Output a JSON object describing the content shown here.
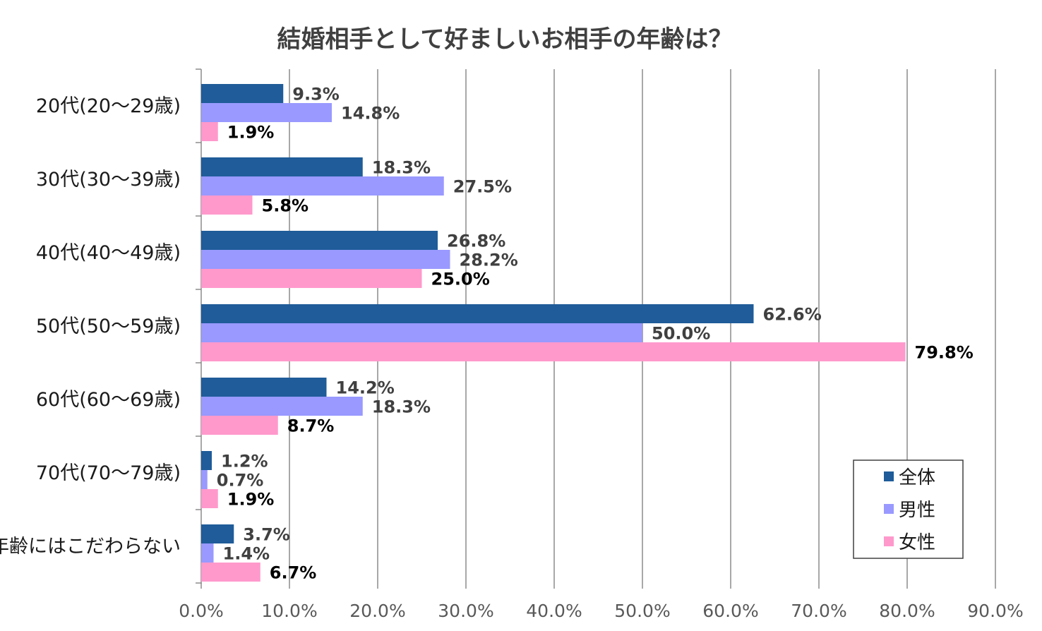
{
  "chart_data": {
    "type": "bar",
    "orientation": "horizontal",
    "title": "結婚相手として好ましいお相手の年齢は？",
    "categories": [
      "20代(20～29歳)",
      "30代(30～39歳)",
      "40代(40～49歳)",
      "50代(50～59歳)",
      "60代(60～69歳)",
      "70代(70～79歳)",
      "年齢にはこだわらない"
    ],
    "series": [
      {
        "name": "全体",
        "color": "#1f5c99",
        "values": [
          9.3,
          18.3,
          26.8,
          62.6,
          14.2,
          1.2,
          3.7
        ],
        "labels": [
          "9.3%",
          "18.3%",
          "26.8%",
          "62.6%",
          "14.2%",
          "1.2%",
          "3.7%"
        ]
      },
      {
        "name": "男性",
        "color": "#9999ff",
        "values": [
          14.8,
          27.5,
          28.2,
          50.0,
          18.3,
          0.7,
          1.4
        ],
        "labels": [
          "14.8%",
          "27.5%",
          "28.2%",
          "50.0%",
          "18.3%",
          "0.7%",
          "1.4%"
        ]
      },
      {
        "name": "女性",
        "color": "#ff99cc",
        "values": [
          1.9,
          5.8,
          25.0,
          79.8,
          8.7,
          1.9,
          6.7
        ],
        "labels": [
          "1.9%",
          "5.8%",
          "25.0%",
          "79.8%",
          "8.7%",
          "1.9%",
          "6.7%"
        ]
      }
    ],
    "xlim": [
      0,
      90
    ],
    "xticks": [
      "0.0%",
      "10.0%",
      "20.0%",
      "30.0%",
      "40.0%",
      "50.0%",
      "60.0%",
      "70.0%",
      "80.0%",
      "90.0%"
    ],
    "grid": true,
    "legend": "bottom-right"
  }
}
